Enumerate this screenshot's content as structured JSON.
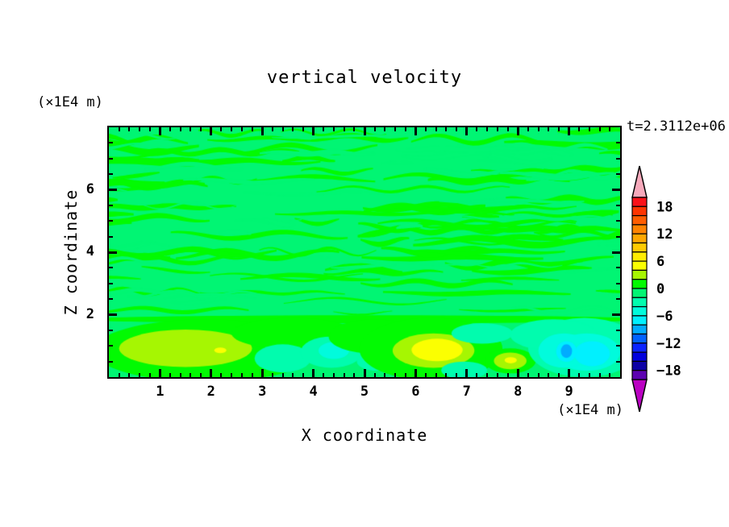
{
  "title": "vertical velocity",
  "annotations": {
    "time_label": "t=2.3112e+06",
    "z_units_label": "(×1E4 m)",
    "x_units_label": "(×1E4 m)"
  },
  "axes": {
    "x": {
      "label": "X coordinate",
      "range": [
        0,
        10
      ],
      "major_ticks": [
        1,
        2,
        3,
        4,
        5,
        6,
        7,
        8,
        9
      ],
      "tick_labels": [
        "1",
        "2",
        "3",
        "4",
        "5",
        "6",
        "7",
        "8",
        "9"
      ],
      "minor_step": 0.2
    },
    "z": {
      "label": "Z coordinate",
      "range": [
        0,
        8
      ],
      "major_ticks": [
        2,
        4,
        6
      ],
      "tick_labels": [
        "2",
        "4",
        "6"
      ],
      "minor_step": 0.5
    }
  },
  "colorbar": {
    "tick_labels": [
      {
        "value": 18,
        "label": "18"
      },
      {
        "value": 12,
        "label": "12"
      },
      {
        "value": 6,
        "label": "6"
      },
      {
        "value": 0,
        "label": "0"
      },
      {
        "value": -6,
        "label": "−6"
      },
      {
        "value": -12,
        "label": "−12"
      },
      {
        "value": -18,
        "label": "−18"
      }
    ],
    "level_max": 20,
    "level_min": -20,
    "contour_interval": 2,
    "colors_top_to_bottom": [
      "#f91219",
      "#fd3501",
      "#fe5d01",
      "#ff8301",
      "#ffa701",
      "#ffca01",
      "#ffec01",
      "#fbff01",
      "#a6f602",
      "#02fa02",
      "#01f573",
      "#01fcae",
      "#01fbdc",
      "#01f0fe",
      "#01acfe",
      "#0162fe",
      "#0b24fe",
      "#0101dc",
      "#0d01a5",
      "#5c02b0"
    ],
    "over_color": "#f6a9bb",
    "under_color": "#ba02c2",
    "outline_color": "#000000"
  },
  "chart_data": {
    "type": "heatmap",
    "subtype": "filled-contour",
    "title": "vertical velocity",
    "time_annotation": "t=2.3112e+06",
    "xlabel": "X coordinate",
    "ylabel": "Z coordinate",
    "x_units": "(×1E4 m)",
    "z_units": "(×1E4 m)",
    "xlim": [
      0,
      10
    ],
    "zlim": [
      0,
      8
    ],
    "contour_interval": 2,
    "background_band": [
      -2,
      0
    ],
    "streak_band": [
      0,
      2
    ],
    "streaks": {
      "seed": 1234,
      "green_count": 95,
      "spring_count": 42,
      "z_min": 1.95,
      "z_max": 7.95
    },
    "features": [
      {
        "name": "boundary-stripe",
        "x": 5.0,
        "z": 1.85,
        "rx": 5.5,
        "rz": 0.13,
        "hi": 2
      },
      {
        "name": "left-updraft-outer",
        "x": 1.9,
        "z": 0.85,
        "rx": 2.2,
        "rz": 1.0,
        "hi": 2
      },
      {
        "name": "left-updraft-mid",
        "x": 1.5,
        "z": 0.92,
        "rx": 1.3,
        "rz": 0.6,
        "hi": 4
      },
      {
        "name": "left-updraft-core",
        "x": 2.18,
        "z": 0.86,
        "rx": 0.12,
        "rz": 0.09,
        "hi": 6
      },
      {
        "name": "mid-green-band",
        "x": 3.6,
        "z": 1.4,
        "rx": 1.2,
        "rz": 0.5,
        "hi": 2
      },
      {
        "name": "mid-downdraft-1",
        "x": 3.4,
        "z": 0.6,
        "rx": 0.55,
        "rz": 0.45,
        "hi": -2
      },
      {
        "name": "mid-downdraft-2",
        "x": 4.35,
        "z": 0.8,
        "rx": 0.6,
        "rz": 0.5,
        "hi": -2
      },
      {
        "name": "mid-downdraft-2b",
        "x": 4.4,
        "z": 0.85,
        "rx": 0.3,
        "rz": 0.27,
        "hi": -4
      },
      {
        "name": "mid-downdraft-3",
        "x": 5.25,
        "z": 0.5,
        "rx": 0.4,
        "rz": 0.3,
        "hi": -2
      },
      {
        "name": "central-green-band",
        "x": 5.2,
        "z": 1.3,
        "rx": 0.9,
        "rz": 0.55,
        "hi": 2
      },
      {
        "name": "central-updraft-outer",
        "x": 6.3,
        "z": 0.9,
        "rx": 1.4,
        "rz": 1.0,
        "hi": 2
      },
      {
        "name": "central-updraft-mid",
        "x": 6.35,
        "z": 0.85,
        "rx": 0.8,
        "rz": 0.55,
        "hi": 4
      },
      {
        "name": "central-updraft-core",
        "x": 6.42,
        "z": 0.87,
        "rx": 0.5,
        "rz": 0.36,
        "hi": 6
      },
      {
        "name": "small-updraft-outer",
        "x": 7.85,
        "z": 0.52,
        "rx": 0.5,
        "rz": 0.4,
        "hi": 2
      },
      {
        "name": "small-updraft-mid",
        "x": 7.85,
        "z": 0.52,
        "rx": 0.32,
        "rz": 0.27,
        "hi": 4
      },
      {
        "name": "small-updraft-core",
        "x": 7.86,
        "z": 0.54,
        "rx": 0.12,
        "rz": 0.1,
        "hi": 6
      },
      {
        "name": "downdraft-patch-a",
        "x": 7.3,
        "z": 1.4,
        "rx": 0.6,
        "rz": 0.33,
        "hi": -2
      },
      {
        "name": "downdraft-patch-b",
        "x": 6.95,
        "z": 0.22,
        "rx": 0.45,
        "rz": 0.28,
        "hi": -2
      },
      {
        "name": "right-downdraft-1",
        "x": 9.3,
        "z": 0.95,
        "rx": 1.1,
        "rz": 0.95,
        "hi": -2
      },
      {
        "name": "right-downdraft-2",
        "x": 8.7,
        "z": 1.35,
        "rx": 0.85,
        "rz": 0.5,
        "hi": -2
      },
      {
        "name": "right-downdraft-3",
        "x": 9.35,
        "z": 0.8,
        "rx": 0.65,
        "rz": 0.6,
        "hi": -4
      },
      {
        "name": "right-downdraft-4",
        "x": 8.9,
        "z": 0.85,
        "rx": 0.5,
        "rz": 0.55,
        "hi": -4
      },
      {
        "name": "right-downdraft-5",
        "x": 9.45,
        "z": 0.75,
        "rx": 0.35,
        "rz": 0.4,
        "hi": -6
      },
      {
        "name": "right-downdraft-6",
        "x": 8.95,
        "z": 0.82,
        "rx": 0.2,
        "rz": 0.33,
        "hi": -6
      },
      {
        "name": "right-downdraft-core",
        "x": 8.95,
        "z": 0.83,
        "rx": 0.11,
        "rz": 0.22,
        "hi": -8
      }
    ]
  }
}
